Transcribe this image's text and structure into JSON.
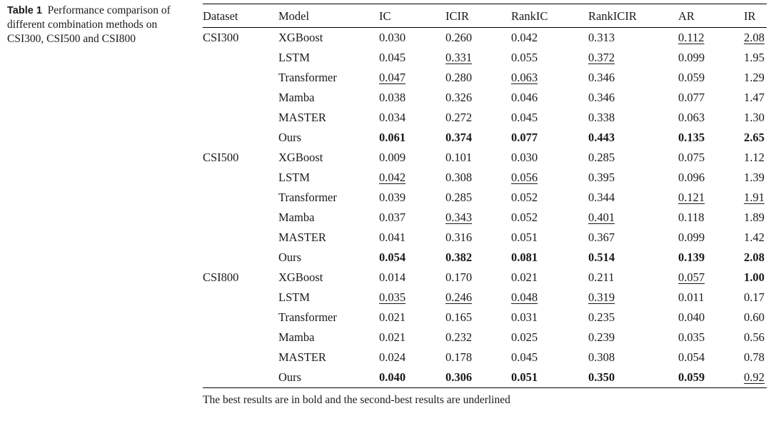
{
  "caption": {
    "label": "Table 1",
    "text": "Performance comparison of different combination methods on CSI300, CSI500 and CSI800"
  },
  "table": {
    "headers": [
      "Dataset",
      "Model",
      "IC",
      "ICIR",
      "RankIC",
      "RankICIR",
      "AR",
      "IR"
    ],
    "rows": [
      {
        "dataset": "CSI300",
        "model": "XGBoost",
        "values": [
          "0.030",
          "0.260",
          "0.042",
          "0.313",
          "0.112",
          "2.08"
        ],
        "styles": [
          "",
          "",
          "",
          "",
          "ul",
          "ul"
        ]
      },
      {
        "dataset": "",
        "model": "LSTM",
        "values": [
          "0.045",
          "0.331",
          "0.055",
          "0.372",
          "0.099",
          "1.95"
        ],
        "styles": [
          "",
          "ul",
          "",
          "ul",
          "",
          ""
        ]
      },
      {
        "dataset": "",
        "model": "Transformer",
        "values": [
          "0.047",
          "0.280",
          "0.063",
          "0.346",
          "0.059",
          "1.29"
        ],
        "styles": [
          "ul",
          "",
          "ul",
          "",
          "",
          ""
        ]
      },
      {
        "dataset": "",
        "model": "Mamba",
        "values": [
          "0.038",
          "0.326",
          "0.046",
          "0.346",
          "0.077",
          "1.47"
        ],
        "styles": [
          "",
          "",
          "",
          "",
          "",
          ""
        ]
      },
      {
        "dataset": "",
        "model": "MASTER",
        "values": [
          "0.034",
          "0.272",
          "0.045",
          "0.338",
          "0.063",
          "1.30"
        ],
        "styles": [
          "",
          "",
          "",
          "",
          "",
          ""
        ]
      },
      {
        "dataset": "",
        "model": "Ours",
        "values": [
          "0.061",
          "0.374",
          "0.077",
          "0.443",
          "0.135",
          "2.65"
        ],
        "styles": [
          "bold",
          "bold",
          "bold",
          "bold",
          "bold",
          "bold"
        ]
      },
      {
        "dataset": "CSI500",
        "model": "XGBoost",
        "values": [
          "0.009",
          "0.101",
          "0.030",
          "0.285",
          "0.075",
          "1.12"
        ],
        "styles": [
          "",
          "",
          "",
          "",
          "",
          ""
        ]
      },
      {
        "dataset": "",
        "model": "LSTM",
        "values": [
          "0.042",
          "0.308",
          "0.056",
          "0.395",
          "0.096",
          "1.39"
        ],
        "styles": [
          "ul",
          "",
          "ul",
          "",
          "",
          ""
        ]
      },
      {
        "dataset": "",
        "model": "Transformer",
        "values": [
          "0.039",
          "0.285",
          "0.052",
          "0.344",
          "0.121",
          "1.91"
        ],
        "styles": [
          "",
          "",
          "",
          "",
          "ul",
          "ul"
        ]
      },
      {
        "dataset": "",
        "model": "Mamba",
        "values": [
          "0.037",
          "0.343",
          "0.052",
          "0.401",
          "0.118",
          "1.89"
        ],
        "styles": [
          "",
          "ul",
          "",
          "ul",
          "",
          ""
        ]
      },
      {
        "dataset": "",
        "model": "MASTER",
        "values": [
          "0.041",
          "0.316",
          "0.051",
          "0.367",
          "0.099",
          "1.42"
        ],
        "styles": [
          "",
          "",
          "",
          "",
          "",
          ""
        ]
      },
      {
        "dataset": "",
        "model": "Ours",
        "values": [
          "0.054",
          "0.382",
          "0.081",
          "0.514",
          "0.139",
          "2.08"
        ],
        "styles": [
          "bold",
          "bold",
          "bold",
          "bold",
          "bold",
          "bold"
        ]
      },
      {
        "dataset": "CSI800",
        "model": "XGBoost",
        "values": [
          "0.014",
          "0.170",
          "0.021",
          "0.211",
          "0.057",
          "1.00"
        ],
        "styles": [
          "",
          "",
          "",
          "",
          "ul",
          "bold"
        ]
      },
      {
        "dataset": "",
        "model": "LSTM",
        "values": [
          "0.035",
          "0.246",
          "0.048",
          "0.319",
          "0.011",
          "0.17"
        ],
        "styles": [
          "ul",
          "ul",
          "ul",
          "ul",
          "",
          ""
        ]
      },
      {
        "dataset": "",
        "model": "Transformer",
        "values": [
          "0.021",
          "0.165",
          "0.031",
          "0.235",
          "0.040",
          "0.60"
        ],
        "styles": [
          "",
          "",
          "",
          "",
          "",
          ""
        ]
      },
      {
        "dataset": "",
        "model": "Mamba",
        "values": [
          "0.021",
          "0.232",
          "0.025",
          "0.239",
          "0.035",
          "0.56"
        ],
        "styles": [
          "",
          "",
          "",
          "",
          "",
          ""
        ]
      },
      {
        "dataset": "",
        "model": "MASTER",
        "values": [
          "0.024",
          "0.178",
          "0.045",
          "0.308",
          "0.054",
          "0.78"
        ],
        "styles": [
          "",
          "",
          "",
          "",
          "",
          ""
        ]
      },
      {
        "dataset": "",
        "model": "Ours",
        "values": [
          "0.040",
          "0.306",
          "0.051",
          "0.350",
          "0.059",
          "0.92"
        ],
        "styles": [
          "bold",
          "bold",
          "bold",
          "bold",
          "bold",
          "ul"
        ]
      }
    ]
  },
  "footnote": "The best results are in bold and the second-best results are underlined"
}
